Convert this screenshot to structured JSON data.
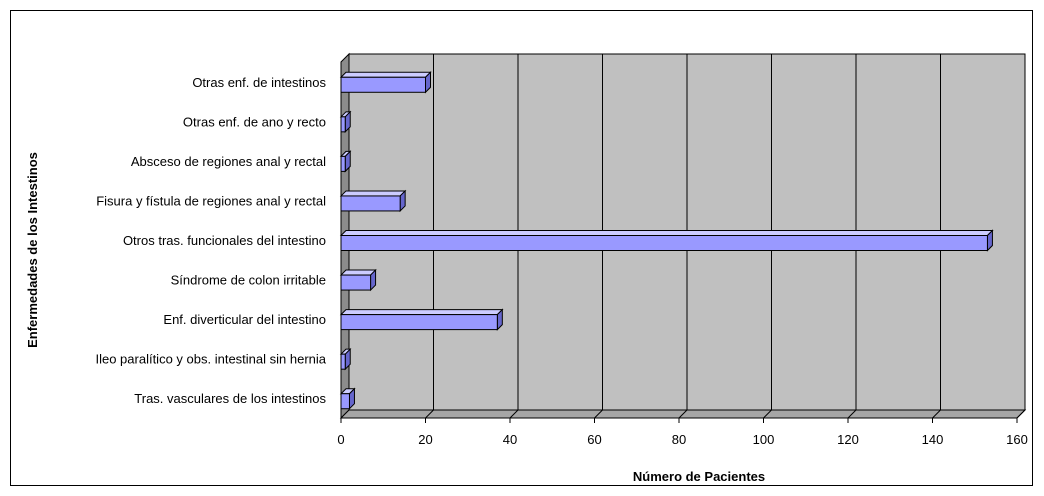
{
  "chart_data": {
    "type": "bar",
    "orientation": "horizontal",
    "style": "3d",
    "title": "",
    "xlabel": "Número de Pacientes",
    "ylabel": "Enfermedades de los Intestinos",
    "xlim": [
      0,
      160
    ],
    "xticks": [
      0,
      20,
      40,
      60,
      80,
      100,
      120,
      140,
      160
    ],
    "grid": "vertical",
    "legend": "none",
    "categories": [
      "Otras enf. de  intestinos",
      "Otras enf. de ano y recto",
      "Absceso de regiones anal y rectal",
      "Fisura y fístula de regiones anal y rectal",
      "Otros tras. funcionales del intestino",
      "Síndrome de colon irritable",
      "Enf. diverticular del intestino",
      "Ileo paralítico y obs. intestinal sin hernia",
      "Tras. vasculares de los intestinos"
    ],
    "values": [
      20,
      1,
      1,
      14,
      153,
      7,
      37,
      1,
      2
    ],
    "colors": {
      "bar_face": "#9999ff",
      "bar_top": "#ccccff",
      "bar_side": "#6666cc",
      "plot_wall": "#c0c0c0",
      "plot_side": "#8c8c8c",
      "plot_floor": "#a6a6a6",
      "grid": "#000000"
    }
  }
}
